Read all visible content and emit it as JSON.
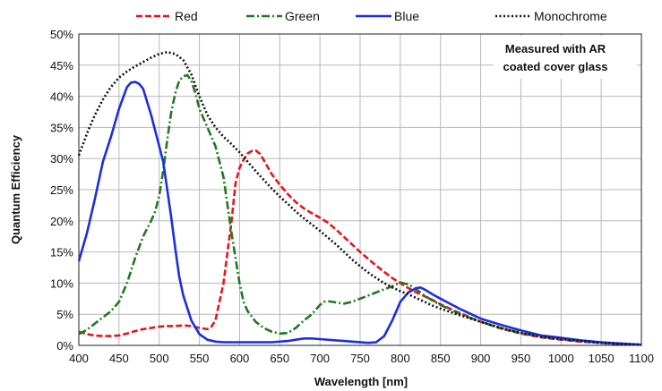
{
  "chart_data": {
    "type": "line",
    "title": "",
    "xlabel": "Wavelength [nm]",
    "ylabel": "Quantum Efficiency",
    "xlim": [
      400,
      1100
    ],
    "ylim": [
      0,
      50
    ],
    "x_ticks": [
      400,
      450,
      500,
      550,
      600,
      650,
      700,
      750,
      800,
      850,
      900,
      950,
      1000,
      1050,
      1100
    ],
    "y_ticks": [
      0,
      5,
      10,
      15,
      20,
      25,
      30,
      35,
      40,
      45,
      50
    ],
    "y_tick_labels": [
      "0%",
      "5%",
      "10%",
      "15%",
      "20%",
      "25%",
      "30%",
      "35%",
      "40%",
      "45%",
      "50%"
    ],
    "grid": true,
    "legend_position": "top",
    "annotation": [
      "Measured with AR",
      "coated cover glass"
    ],
    "series": [
      {
        "name": "Red",
        "color": "#e8141b",
        "dash": "dashed",
        "points": [
          [
            400,
            2.2
          ],
          [
            410,
            1.8
          ],
          [
            420,
            1.6
          ],
          [
            430,
            1.5
          ],
          [
            440,
            1.5
          ],
          [
            450,
            1.6
          ],
          [
            460,
            1.9
          ],
          [
            470,
            2.3
          ],
          [
            480,
            2.6
          ],
          [
            490,
            2.8
          ],
          [
            500,
            3.0
          ],
          [
            510,
            3.1
          ],
          [
            520,
            3.1
          ],
          [
            530,
            3.2
          ],
          [
            540,
            3.1
          ],
          [
            550,
            2.8
          ],
          [
            560,
            2.6
          ],
          [
            565,
            3.0
          ],
          [
            570,
            4.0
          ],
          [
            580,
            10.0
          ],
          [
            590,
            20.0
          ],
          [
            595,
            26.0
          ],
          [
            600,
            28.5
          ],
          [
            605,
            29.8
          ],
          [
            610,
            30.8
          ],
          [
            615,
            31.2
          ],
          [
            620,
            31.3
          ],
          [
            625,
            30.8
          ],
          [
            630,
            29.8
          ],
          [
            640,
            27.5
          ],
          [
            650,
            25.8
          ],
          [
            660,
            24.3
          ],
          [
            670,
            23.0
          ],
          [
            680,
            22.0
          ],
          [
            690,
            21.2
          ],
          [
            700,
            20.5
          ],
          [
            710,
            19.7
          ],
          [
            720,
            18.6
          ],
          [
            730,
            17.4
          ],
          [
            740,
            16.2
          ],
          [
            750,
            15.0
          ],
          [
            760,
            13.9
          ],
          [
            770,
            12.8
          ],
          [
            780,
            11.8
          ],
          [
            790,
            10.8
          ],
          [
            800,
            10.0
          ],
          [
            810,
            9.2
          ],
          [
            820,
            8.5
          ],
          [
            830,
            7.9
          ],
          [
            840,
            7.3
          ],
          [
            850,
            6.6
          ],
          [
            860,
            6.0
          ],
          [
            870,
            5.4
          ],
          [
            880,
            4.9
          ],
          [
            890,
            4.3
          ],
          [
            900,
            3.8
          ],
          [
            925,
            2.7
          ],
          [
            950,
            1.9
          ],
          [
            975,
            1.3
          ],
          [
            1000,
            0.9
          ],
          [
            1025,
            0.6
          ],
          [
            1050,
            0.4
          ],
          [
            1075,
            0.2
          ],
          [
            1100,
            0.1
          ]
        ]
      },
      {
        "name": "Green",
        "color": "#1e7a1e",
        "dash": "dashdot",
        "points": [
          [
            400,
            1.8
          ],
          [
            410,
            2.5
          ],
          [
            420,
            3.5
          ],
          [
            430,
            4.5
          ],
          [
            440,
            5.5
          ],
          [
            450,
            7.0
          ],
          [
            460,
            10.0
          ],
          [
            470,
            14.0
          ],
          [
            480,
            17.5
          ],
          [
            490,
            20.0
          ],
          [
            495,
            21.5
          ],
          [
            500,
            24.0
          ],
          [
            505,
            28.0
          ],
          [
            510,
            33.0
          ],
          [
            515,
            37.5
          ],
          [
            520,
            40.5
          ],
          [
            525,
            42.5
          ],
          [
            530,
            43.2
          ],
          [
            535,
            43.4
          ],
          [
            540,
            42.5
          ],
          [
            545,
            40.5
          ],
          [
            550,
            38.0
          ],
          [
            560,
            35.0
          ],
          [
            570,
            32.0
          ],
          [
            580,
            27.0
          ],
          [
            590,
            18.0
          ],
          [
            600,
            10.0
          ],
          [
            605,
            7.0
          ],
          [
            610,
            5.5
          ],
          [
            620,
            3.8
          ],
          [
            630,
            2.8
          ],
          [
            640,
            2.2
          ],
          [
            650,
            1.9
          ],
          [
            660,
            2.0
          ],
          [
            670,
            2.8
          ],
          [
            680,
            4.0
          ],
          [
            690,
            5.0
          ],
          [
            700,
            6.5
          ],
          [
            705,
            7.0
          ],
          [
            710,
            7.1
          ],
          [
            720,
            6.9
          ],
          [
            730,
            6.7
          ],
          [
            740,
            7.0
          ],
          [
            750,
            7.5
          ],
          [
            760,
            8.0
          ],
          [
            770,
            8.5
          ],
          [
            780,
            9.0
          ],
          [
            790,
            9.5
          ],
          [
            800,
            10.1
          ],
          [
            810,
            9.8
          ],
          [
            820,
            9.0
          ],
          [
            830,
            8.0
          ],
          [
            840,
            7.2
          ],
          [
            850,
            6.5
          ],
          [
            875,
            5.0
          ],
          [
            900,
            3.8
          ],
          [
            925,
            2.8
          ],
          [
            950,
            2.0
          ],
          [
            975,
            1.4
          ],
          [
            1000,
            1.0
          ],
          [
            1025,
            0.7
          ],
          [
            1050,
            0.4
          ],
          [
            1075,
            0.2
          ],
          [
            1100,
            0.1
          ]
        ]
      },
      {
        "name": "Blue",
        "color": "#1a2fe0",
        "dash": "solid",
        "points": [
          [
            400,
            13.5
          ],
          [
            410,
            18.0
          ],
          [
            420,
            23.5
          ],
          [
            430,
            29.5
          ],
          [
            440,
            33.5
          ],
          [
            450,
            38.0
          ],
          [
            460,
            41.5
          ],
          [
            465,
            42.2
          ],
          [
            470,
            42.3
          ],
          [
            475,
            42.0
          ],
          [
            480,
            41.2
          ],
          [
            490,
            37.0
          ],
          [
            500,
            32.0
          ],
          [
            505,
            29.5
          ],
          [
            510,
            25.0
          ],
          [
            515,
            20.5
          ],
          [
            520,
            15.5
          ],
          [
            525,
            11.0
          ],
          [
            530,
            8.0
          ],
          [
            540,
            4.0
          ],
          [
            550,
            1.8
          ],
          [
            560,
            0.9
          ],
          [
            570,
            0.6
          ],
          [
            580,
            0.5
          ],
          [
            600,
            0.5
          ],
          [
            620,
            0.5
          ],
          [
            640,
            0.5
          ],
          [
            660,
            0.7
          ],
          [
            670,
            0.9
          ],
          [
            680,
            1.1
          ],
          [
            690,
            1.1
          ],
          [
            700,
            1.0
          ],
          [
            720,
            0.8
          ],
          [
            740,
            0.6
          ],
          [
            760,
            0.4
          ],
          [
            770,
            0.5
          ],
          [
            780,
            1.5
          ],
          [
            790,
            4.0
          ],
          [
            800,
            7.0
          ],
          [
            810,
            8.5
          ],
          [
            820,
            9.2
          ],
          [
            825,
            9.3
          ],
          [
            830,
            9.0
          ],
          [
            840,
            8.2
          ],
          [
            850,
            7.5
          ],
          [
            875,
            5.8
          ],
          [
            900,
            4.3
          ],
          [
            925,
            3.3
          ],
          [
            950,
            2.4
          ],
          [
            975,
            1.6
          ],
          [
            1000,
            1.2
          ],
          [
            1025,
            0.8
          ],
          [
            1050,
            0.5
          ],
          [
            1075,
            0.3
          ],
          [
            1100,
            0.1
          ]
        ]
      },
      {
        "name": "Monochrome",
        "color": "#111111",
        "dash": "dotted",
        "points": [
          [
            400,
            30.5
          ],
          [
            410,
            34.0
          ],
          [
            420,
            37.0
          ],
          [
            430,
            39.5
          ],
          [
            440,
            41.5
          ],
          [
            450,
            43.0
          ],
          [
            460,
            44.0
          ],
          [
            470,
            44.8
          ],
          [
            480,
            45.5
          ],
          [
            490,
            46.2
          ],
          [
            500,
            46.8
          ],
          [
            510,
            47.1
          ],
          [
            520,
            46.8
          ],
          [
            530,
            45.8
          ],
          [
            540,
            43.5
          ],
          [
            550,
            40.0
          ],
          [
            560,
            37.0
          ],
          [
            570,
            35.0
          ],
          [
            580,
            33.5
          ],
          [
            590,
            32.3
          ],
          [
            600,
            31.0
          ],
          [
            610,
            29.5
          ],
          [
            620,
            28.0
          ],
          [
            630,
            26.6
          ],
          [
            640,
            25.2
          ],
          [
            650,
            23.9
          ],
          [
            660,
            22.7
          ],
          [
            670,
            21.5
          ],
          [
            680,
            20.4
          ],
          [
            690,
            19.4
          ],
          [
            700,
            18.4
          ],
          [
            710,
            17.3
          ],
          [
            720,
            16.2
          ],
          [
            730,
            15.0
          ],
          [
            740,
            13.8
          ],
          [
            750,
            12.7
          ],
          [
            760,
            11.7
          ],
          [
            770,
            10.8
          ],
          [
            780,
            10.0
          ],
          [
            790,
            9.3
          ],
          [
            800,
            8.7
          ],
          [
            810,
            8.2
          ],
          [
            820,
            7.6
          ],
          [
            830,
            7.0
          ],
          [
            840,
            6.4
          ],
          [
            850,
            5.9
          ],
          [
            875,
            4.8
          ],
          [
            900,
            3.8
          ],
          [
            925,
            2.8
          ],
          [
            950,
            2.0
          ],
          [
            975,
            1.4
          ],
          [
            1000,
            1.0
          ],
          [
            1025,
            0.7
          ],
          [
            1050,
            0.4
          ],
          [
            1075,
            0.2
          ],
          [
            1100,
            0.1
          ]
        ]
      }
    ]
  }
}
